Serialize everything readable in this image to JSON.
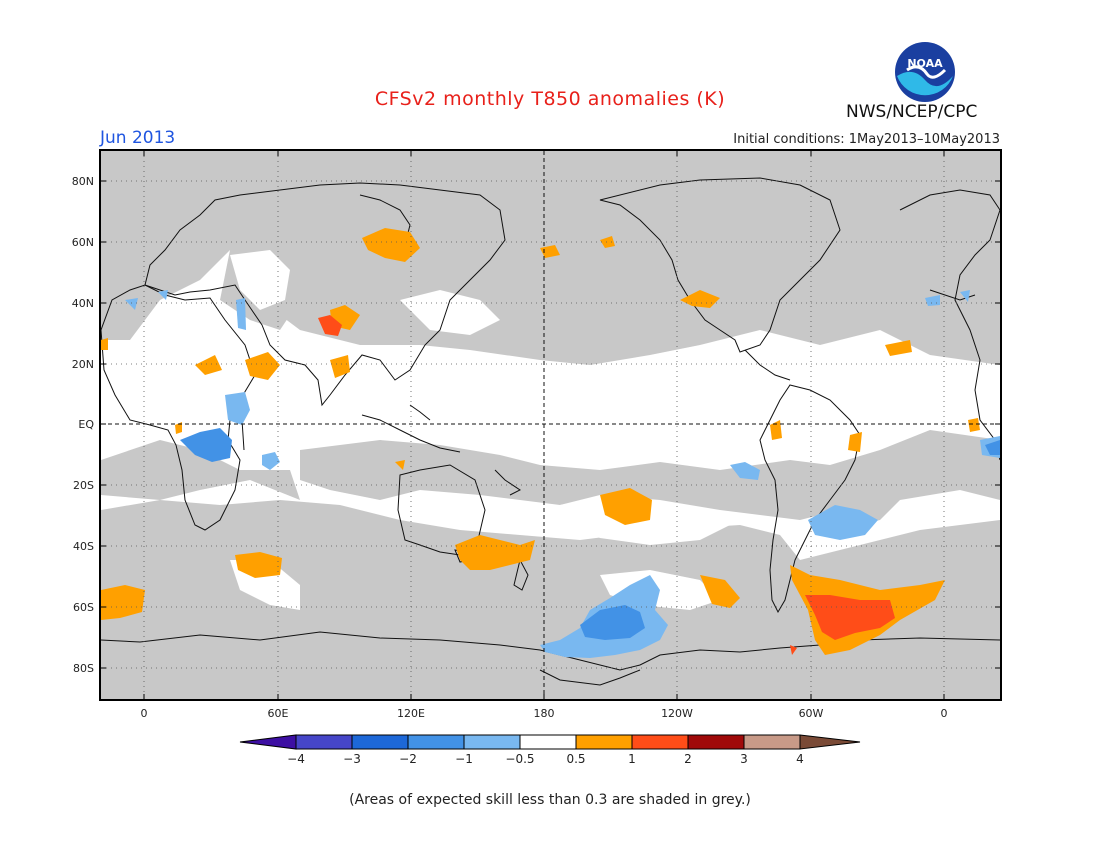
{
  "header": {
    "title": "CFSv2 monthly T850 anomalies (K)",
    "month": "Jun 2013",
    "initial_conditions": "Initial conditions: 1May2013–10May2013",
    "agency": "NWS/NCEP/CPC",
    "logo_text": "NOAA"
  },
  "map": {
    "lat_labels": [
      "80N",
      "60N",
      "40N",
      "20N",
      "EQ",
      "20S",
      "40S",
      "60S",
      "80S"
    ],
    "lon_labels": [
      "0",
      "60E",
      "120E",
      "180",
      "120W",
      "60W",
      "0"
    ],
    "skill_shading_color": "#c8c8c8",
    "centered_on": "180"
  },
  "colorbar": {
    "labels": [
      "−4",
      "−3",
      "−2",
      "−1",
      "−0.5",
      "0.5",
      "1",
      "2",
      "3",
      "4"
    ],
    "colors": [
      "#3d0fa3",
      "#4646c8",
      "#1d68d8",
      "#4292e6",
      "#79b8f0",
      "#ffffff",
      "#ffa000",
      "#ff4d18",
      "#a00a0a",
      "#c89a88",
      "#7a4a36"
    ]
  },
  "footnote": "(Areas of expected skill less than 0.3 are shaded in grey.)"
}
